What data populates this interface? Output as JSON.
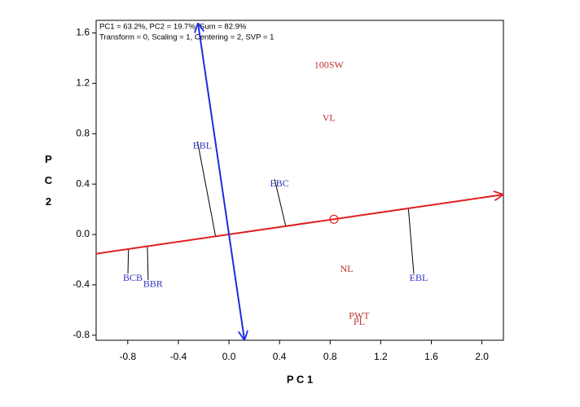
{
  "chart_data": {
    "type": "biplot",
    "annotations": [
      "PC1 = 63.2%, PC2 = 19.7%, Sum = 82.9%",
      "Transform = 0, Scaling = 1, Centering = 2, SVP = 1"
    ],
    "xlabel": "P C 1",
    "ylabel": "P C 2",
    "xlim": [
      -1.05,
      2.17
    ],
    "ylim": [
      -0.84,
      1.7
    ],
    "xticks": [
      -0.8,
      -0.4,
      {
        "value": 0,
        "label": "0.0"
      },
      0.4,
      0.8,
      1.2,
      1.6,
      {
        "value": 2,
        "label": "2.0"
      }
    ],
    "yticks": [
      -0.8,
      -0.4,
      {
        "value": 0,
        "label": "0.0"
      },
      0.4,
      0.8,
      1.2,
      1.6
    ],
    "point_groups": [
      {
        "color": "#c03030",
        "projection": false,
        "labels": [
          "100SW",
          "VL",
          "NL",
          "PWT",
          "PL"
        ],
        "x": [
          0.79,
          0.79,
          0.93,
          1.03,
          1.03
        ],
        "y": [
          1.34,
          0.92,
          -0.28,
          -0.65,
          -0.7
        ]
      },
      {
        "color": "#3030c0",
        "projection": true,
        "labels": [
          "BBL",
          "EBC",
          "EBL",
          "BCB",
          "BBR"
        ],
        "x": [
          -0.21,
          0.4,
          1.5,
          -0.76,
          -0.6
        ],
        "y": [
          0.7,
          0.4,
          -0.35,
          -0.35,
          -0.4
        ]
      }
    ],
    "axis_lines": [
      {
        "color": "#e02020",
        "arrows": "end",
        "x": [
          -1.05,
          2.17
        ],
        "y": [
          -0.153,
          0.317
        ]
      },
      {
        "color": "#1a2ee0",
        "arrows": "both",
        "x": [
          -0.245,
          0.123
        ],
        "y": [
          1.68,
          -0.84
        ]
      }
    ],
    "mean_marker": {
      "color": "#e02020",
      "x": 0.83,
      "y": 0.121
    }
  }
}
